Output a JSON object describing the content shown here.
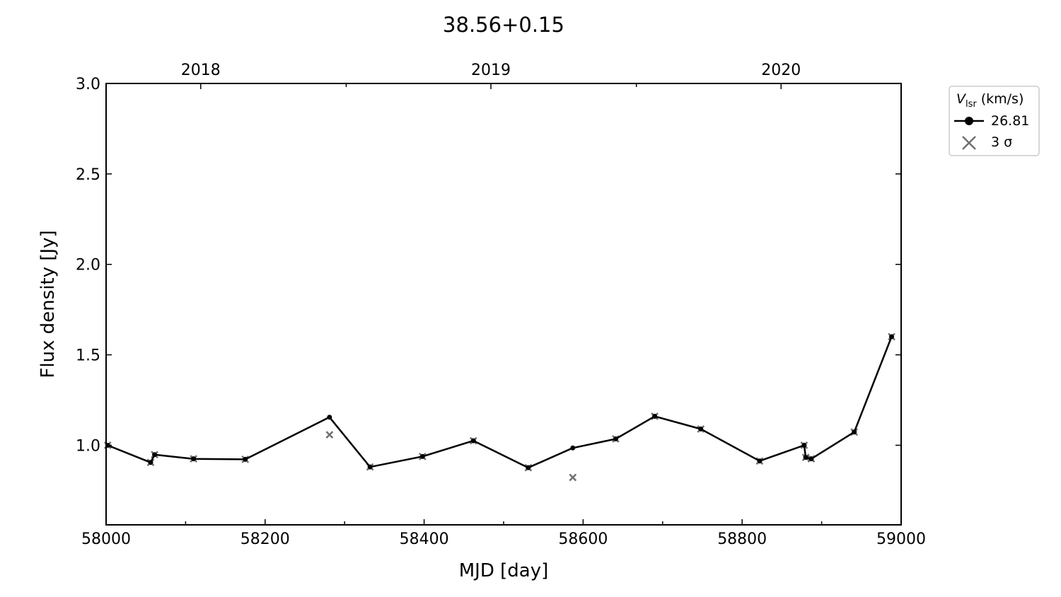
{
  "chart_data": {
    "type": "line",
    "title": "38.56+0.15",
    "xlabel": "MJD [day]",
    "ylabel": "Flux density [Jy]",
    "xlim": [
      58000,
      59000
    ],
    "ylim": [
      0.56,
      3.0
    ],
    "xticks": [
      "58000",
      "58200",
      "58400",
      "58600",
      "58800",
      "59000"
    ],
    "yticks": [
      "1.0",
      "1.5",
      "2.0",
      "2.5",
      "3.0"
    ],
    "top_axis": {
      "ticks": [
        {
          "mjd": 58119,
          "label": "2018"
        },
        {
          "mjd": 58484,
          "label": "2019"
        },
        {
          "mjd": 58849,
          "label": "2020"
        }
      ]
    },
    "legend": {
      "title_main": "V",
      "title_sub": "lsr",
      "title_unit": "(km/s)",
      "position": "outside-right-top",
      "entries": [
        {
          "label": "26.81",
          "marker": "circle-line",
          "color": "#000000"
        },
        {
          "label": "3 σ",
          "marker": "x",
          "color": "#707070"
        }
      ]
    },
    "series": [
      {
        "name": "26.81",
        "color": "#000000",
        "x": [
          58002,
          58056,
          58061,
          58110,
          58175,
          58281,
          58332,
          58398,
          58462,
          58531,
          58587,
          58641,
          58690,
          58748,
          58822,
          58878,
          58880,
          58887,
          58941,
          58988
        ],
        "y": [
          1.0,
          0.905,
          0.948,
          0.925,
          0.922,
          1.155,
          0.88,
          0.938,
          1.025,
          0.876,
          0.985,
          1.035,
          1.16,
          1.09,
          0.913,
          1.0,
          0.933,
          0.925,
          1.073,
          1.6
        ]
      },
      {
        "name": "3 σ",
        "color": "#707070",
        "x": [
          58002,
          58056,
          58061,
          58110,
          58175,
          58281,
          58332,
          58398,
          58462,
          58531,
          58587,
          58641,
          58690,
          58748,
          58822,
          58878,
          58880,
          58887,
          58941,
          58988
        ],
        "y": [
          1.0,
          0.905,
          0.948,
          0.925,
          0.922,
          1.058,
          0.88,
          0.938,
          1.025,
          0.876,
          0.822,
          1.035,
          1.16,
          1.09,
          0.913,
          1.0,
          0.933,
          0.925,
          1.073,
          1.6
        ]
      }
    ]
  }
}
